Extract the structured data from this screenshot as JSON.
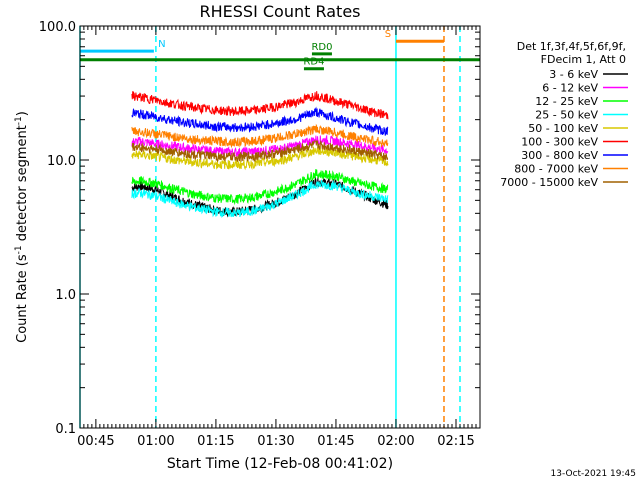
{
  "chart_data": {
    "type": "line",
    "title": "RHESSI Count Rates",
    "xlabel": "Start Time (12-Feb-08 00:41:02)",
    "ylabel": "Count Rate (s⁻¹ detector segment⁻¹)",
    "ylabel_parts": [
      "Count Rate (s",
      "-1",
      " detector segment",
      "-1",
      ")"
    ],
    "yscale": "log",
    "ylim": [
      0.1,
      100.0
    ],
    "xlim": [
      "00:41:02",
      "02:21:00"
    ],
    "x_ticks": [
      "00:45",
      "01:00",
      "01:15",
      "01:30",
      "01:45",
      "02:00",
      "02:15"
    ],
    "y_ticks": [
      "0.1",
      "1.0",
      "10.0",
      "100.0"
    ],
    "grid": false,
    "legend_header": [
      "Det 1f,3f,4f,5f,6f,9f,",
      "FDecim 1, Att 0"
    ],
    "legend_position": "right",
    "timestamp": "13-Oct-2021 19:45",
    "series": [
      {
        "name": "3 - 6 keV",
        "color": "#000000",
        "x": [
          "00:54",
          "00:56",
          "01:00",
          "01:05",
          "01:10",
          "01:15",
          "01:20",
          "01:25",
          "01:30",
          "01:35",
          "01:40",
          "01:45",
          "01:50",
          "01:55",
          "01:58"
        ],
        "values": [
          6.2,
          6.4,
          6.0,
          5.2,
          4.6,
          4.2,
          4.1,
          4.3,
          4.8,
          5.6,
          6.9,
          6.6,
          5.8,
          5.0,
          4.6
        ]
      },
      {
        "name": "6 - 12 keV",
        "color": "#ff00ff",
        "x": [
          "00:54",
          "00:56",
          "01:00",
          "01:05",
          "01:10",
          "01:15",
          "01:20",
          "01:25",
          "01:30",
          "01:35",
          "01:40",
          "01:45",
          "01:50",
          "01:55",
          "01:58"
        ],
        "values": [
          13.5,
          13.8,
          13.2,
          12.6,
          12.0,
          11.6,
          11.4,
          11.6,
          12.0,
          12.8,
          14.2,
          13.8,
          13.0,
          12.2,
          11.8
        ]
      },
      {
        "name": "12 - 25 keV",
        "color": "#00ff00",
        "x": [
          "00:54",
          "00:56",
          "01:00",
          "01:05",
          "01:10",
          "01:15",
          "01:20",
          "01:25",
          "01:30",
          "01:35",
          "01:40",
          "01:45",
          "01:50",
          "01:55",
          "01:58"
        ],
        "values": [
          6.8,
          7.0,
          6.7,
          6.0,
          5.5,
          5.2,
          5.1,
          5.3,
          5.8,
          6.6,
          7.9,
          7.6,
          6.8,
          6.3,
          6.0
        ]
      },
      {
        "name": "25 - 50 keV",
        "color": "#00ffff",
        "x": [
          "00:54",
          "00:56",
          "01:00",
          "01:05",
          "01:10",
          "01:15",
          "01:20",
          "01:25",
          "01:30",
          "01:35",
          "01:40",
          "01:45",
          "01:50",
          "01:55",
          "01:58"
        ],
        "values": [
          5.6,
          5.7,
          5.4,
          4.8,
          4.4,
          4.1,
          4.0,
          4.2,
          4.7,
          5.5,
          6.6,
          6.4,
          5.7,
          5.3,
          5.1
        ]
      },
      {
        "name": "50 - 100 keV",
        "color": "#d8c800",
        "x": [
          "00:54",
          "00:56",
          "01:00",
          "01:05",
          "01:10",
          "01:15",
          "01:20",
          "01:25",
          "01:30",
          "01:35",
          "01:40",
          "01:45",
          "01:50",
          "01:55",
          "01:58"
        ],
        "values": [
          10.8,
          11.0,
          10.6,
          10.0,
          9.6,
          9.3,
          9.2,
          9.4,
          9.8,
          10.6,
          11.8,
          11.4,
          10.6,
          10.0,
          9.6
        ]
      },
      {
        "name": "100 - 300 keV",
        "color": "#ff0000",
        "x": [
          "00:54",
          "00:56",
          "01:00",
          "01:05",
          "01:10",
          "01:15",
          "01:20",
          "01:25",
          "01:30",
          "01:35",
          "01:40",
          "01:45",
          "01:50",
          "01:55",
          "01:58"
        ],
        "values": [
          30.0,
          29.5,
          28.0,
          26.0,
          24.5,
          23.5,
          23.0,
          23.5,
          25.0,
          27.0,
          30.5,
          27.5,
          25.0,
          22.5,
          21.5
        ]
      },
      {
        "name": "300 - 800 keV",
        "color": "#0000ff",
        "x": [
          "00:54",
          "00:56",
          "01:00",
          "01:05",
          "01:10",
          "01:15",
          "01:20",
          "01:25",
          "01:30",
          "01:35",
          "01:40",
          "01:45",
          "01:50",
          "01:55",
          "01:58"
        ],
        "values": [
          22.5,
          22.0,
          21.0,
          19.5,
          18.5,
          17.8,
          17.5,
          17.8,
          18.8,
          20.2,
          22.8,
          20.5,
          18.6,
          17.0,
          16.2
        ]
      },
      {
        "name": "800 - 7000 keV",
        "color": "#ff8000",
        "x": [
          "00:54",
          "00:56",
          "01:00",
          "01:05",
          "01:10",
          "01:15",
          "01:20",
          "01:25",
          "01:30",
          "01:35",
          "01:40",
          "01:45",
          "01:50",
          "01:55",
          "01:58"
        ],
        "values": [
          16.5,
          16.2,
          15.6,
          14.8,
          14.2,
          13.8,
          13.6,
          13.9,
          14.6,
          15.6,
          17.0,
          16.0,
          14.8,
          13.8,
          13.2
        ]
      },
      {
        "name": "7000 - 15000 keV",
        "color": "#a06000",
        "x": [
          "00:54",
          "00:56",
          "01:00",
          "01:05",
          "01:10",
          "01:15",
          "01:20",
          "01:25",
          "01:30",
          "01:35",
          "01:40",
          "01:45",
          "01:50",
          "01:55",
          "01:58"
        ],
        "values": [
          12.5,
          12.4,
          12.0,
          11.4,
          10.9,
          10.6,
          10.5,
          10.7,
          11.2,
          12.0,
          13.0,
          12.4,
          11.6,
          10.9,
          10.4
        ]
      }
    ],
    "annotations": [
      {
        "label": "N",
        "color": "#00c8ff",
        "start": "00:41:02",
        "end": "00:59:30",
        "level": 65
      },
      {
        "label": "S",
        "color": "#ff8000",
        "start": "02:00:00",
        "end": "02:12:00",
        "level": 77
      },
      {
        "label": "RD0",
        "color": "#008000",
        "start": "01:39:00",
        "end": "01:44:00",
        "level": 62
      },
      {
        "label": "RD4",
        "color": "#008000",
        "start": "01:37:00",
        "end": "01:42:00",
        "level": 48
      },
      {
        "label": "",
        "color": "#008000",
        "start": "00:41:02",
        "end": "02:21:00",
        "level": 56
      }
    ],
    "vertical_lines": [
      {
        "t": "00:41:02",
        "color": "#00ffff",
        "style": "solid"
      },
      {
        "t": "01:00:00",
        "color": "#00ffff",
        "style": "dashed"
      },
      {
        "t": "02:00:00",
        "color": "#00ffff",
        "style": "solid"
      },
      {
        "t": "02:12:00",
        "color": "#ff8000",
        "style": "dashed"
      },
      {
        "t": "02:16:00",
        "color": "#00ffff",
        "style": "dashed"
      }
    ]
  }
}
